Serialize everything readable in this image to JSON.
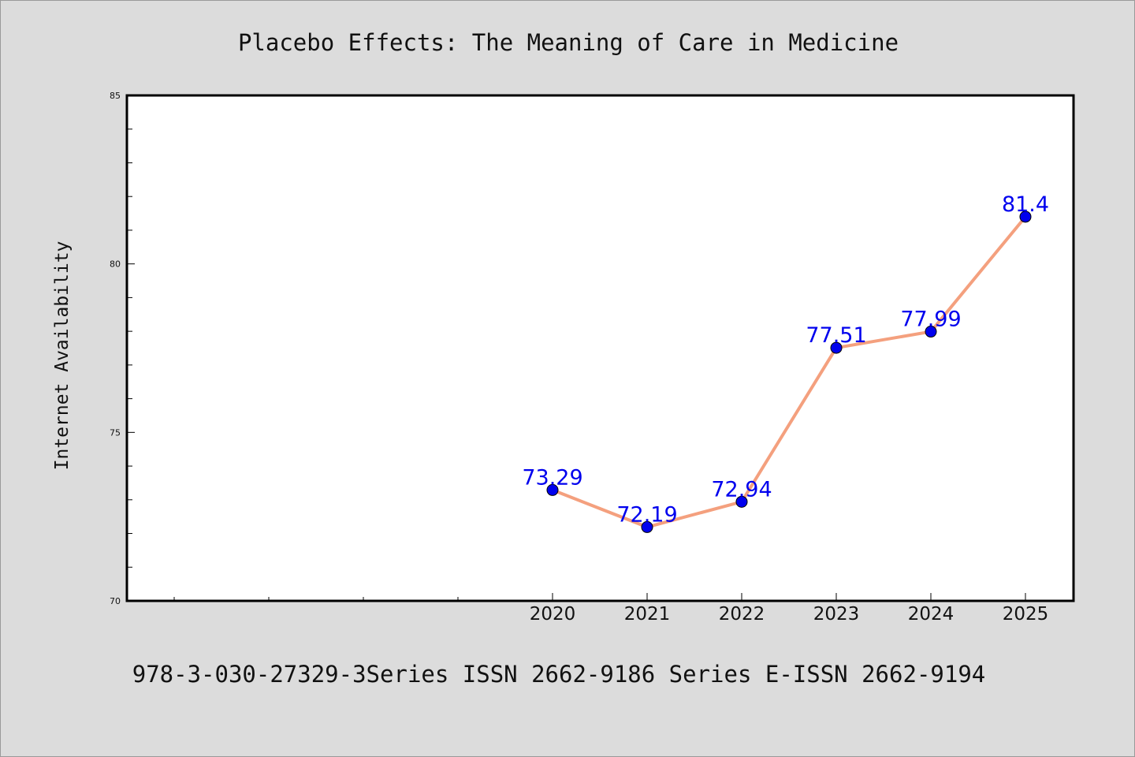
{
  "chart_data": {
    "type": "line",
    "title": "Placebo Effects: The Meaning of Care in Medicine",
    "ylabel": "Internet Availability",
    "xlabel": "",
    "x": [
      "2020",
      "2021",
      "2022",
      "2023",
      "2024",
      "2025"
    ],
    "series": [
      {
        "values": [
          73.29,
          72.19,
          72.94,
          77.51,
          77.99,
          81.4
        ],
        "labels": [
          "73.29",
          "72.19",
          "72.94",
          "77.51",
          "77.99",
          "81.4"
        ]
      }
    ],
    "ylim": [
      70,
      85
    ],
    "yticks": [
      "70",
      "75",
      "80",
      "85"
    ],
    "grid": false,
    "footer": "978-3-030-27329-3Series ISSN 2662-9186 Series E-ISSN 2662-9194",
    "colors": {
      "line": "#f4a07e",
      "marker": "#0000ee",
      "data_label": "#0000ee",
      "plot_bg": "#ffffff",
      "page_bg": "#dcdcdc"
    }
  }
}
